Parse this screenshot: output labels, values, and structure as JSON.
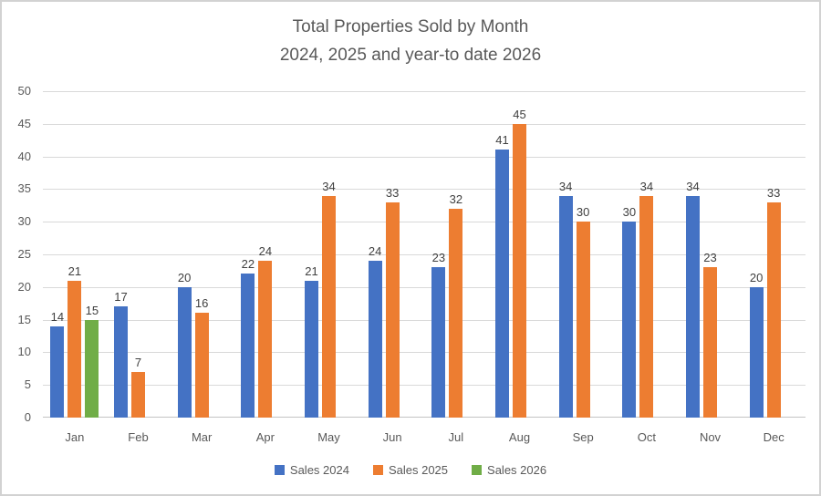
{
  "chart": {
    "title_line1": "Total Properties Sold by Month",
    "title_line2": "2024, 2025 and year-to date 2026"
  },
  "chart_data": {
    "type": "bar",
    "title": "Total Properties Sold by Month 2024, 2025 and year-to date 2026",
    "categories": [
      "Jan",
      "Feb",
      "Mar",
      "Apr",
      "May",
      "Jun",
      "Jul",
      "Aug",
      "Sep",
      "Oct",
      "Nov",
      "Dec"
    ],
    "series": [
      {
        "name": "Sales 2024",
        "color": "#4472C4",
        "values": [
          14,
          17,
          20,
          22,
          21,
          24,
          23,
          41,
          34,
          30,
          34,
          20
        ]
      },
      {
        "name": "Sales 2025",
        "color": "#ED7D31",
        "values": [
          21,
          7,
          16,
          24,
          34,
          33,
          32,
          45,
          30,
          34,
          23,
          33
        ]
      },
      {
        "name": "Sales 2026",
        "color": "#70AD47",
        "values": [
          15,
          null,
          null,
          null,
          null,
          null,
          null,
          null,
          null,
          null,
          null,
          null
        ]
      }
    ],
    "ylim": [
      0,
      50
    ],
    "ytick_step": 5,
    "yticks": [
      0,
      5,
      10,
      15,
      20,
      25,
      30,
      35,
      40,
      45,
      50
    ],
    "grid": true,
    "data_labels": true,
    "legend_position": "bottom",
    "xlabel": "",
    "ylabel": ""
  },
  "colors": {
    "title_text": "#595959",
    "axis_text": "#595959",
    "data_label_text": "#404040",
    "gridline": "#d9d9d9"
  }
}
